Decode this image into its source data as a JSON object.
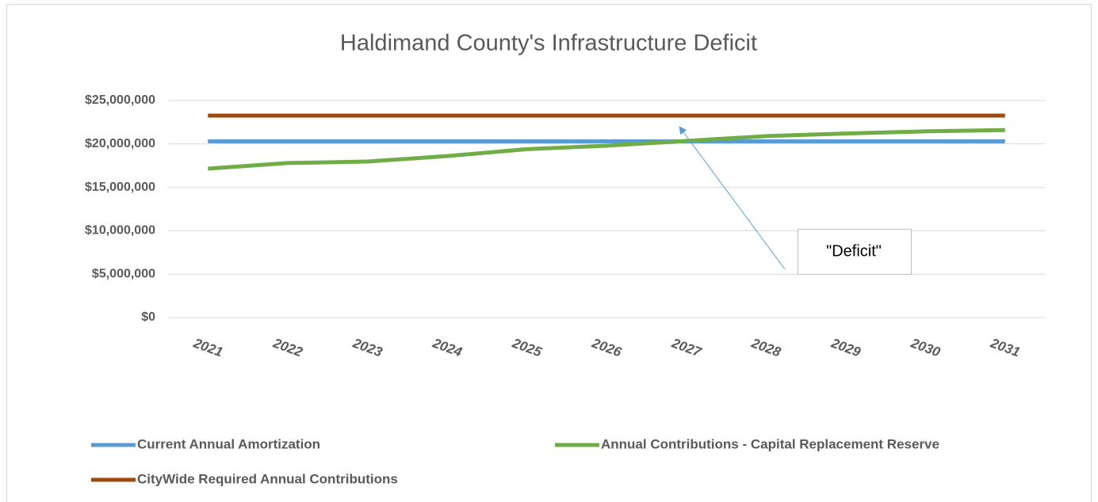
{
  "chart_data": {
    "type": "line",
    "title": "Haldimand County's Infrastructure Deficit",
    "annotation": "\"Deficit\"",
    "categories": [
      "2021",
      "2022",
      "2023",
      "2024",
      "2025",
      "2026",
      "2027",
      "2028",
      "2029",
      "2030",
      "2031"
    ],
    "series": [
      {
        "name": "Current Annual Amortization",
        "color": "#5b9bd5",
        "values": [
          20300000,
          20300000,
          20300000,
          20300000,
          20300000,
          20300000,
          20300000,
          20300000,
          20300000,
          20300000,
          20300000
        ]
      },
      {
        "name": "Annual Contributions - Capital Replacement Reserve",
        "color": "#70ad47",
        "values": [
          17150000,
          17800000,
          17970000,
          18600000,
          19400000,
          19800000,
          20350000,
          20900000,
          21200000,
          21450000,
          21600000
        ]
      },
      {
        "name": "CityWide Required Annual Contributions",
        "color": "#9e480e",
        "values": [
          23270000,
          23270000,
          23270000,
          23270000,
          23270000,
          23270000,
          23270000,
          23270000,
          23270000,
          23270000,
          23270000
        ]
      }
    ],
    "ylim": [
      0,
      25000000
    ],
    "yticks": [
      {
        "value": 0,
        "label": "$0"
      },
      {
        "value": 5000000,
        "label": "$5,000,000"
      },
      {
        "value": 10000000,
        "label": "$10,000,000"
      },
      {
        "value": 15000000,
        "label": "$15,000,000"
      },
      {
        "value": 20000000,
        "label": "$20,000,000"
      },
      {
        "value": 25000000,
        "label": "$25,000,000"
      }
    ],
    "grid": true,
    "legend": "bottom"
  }
}
